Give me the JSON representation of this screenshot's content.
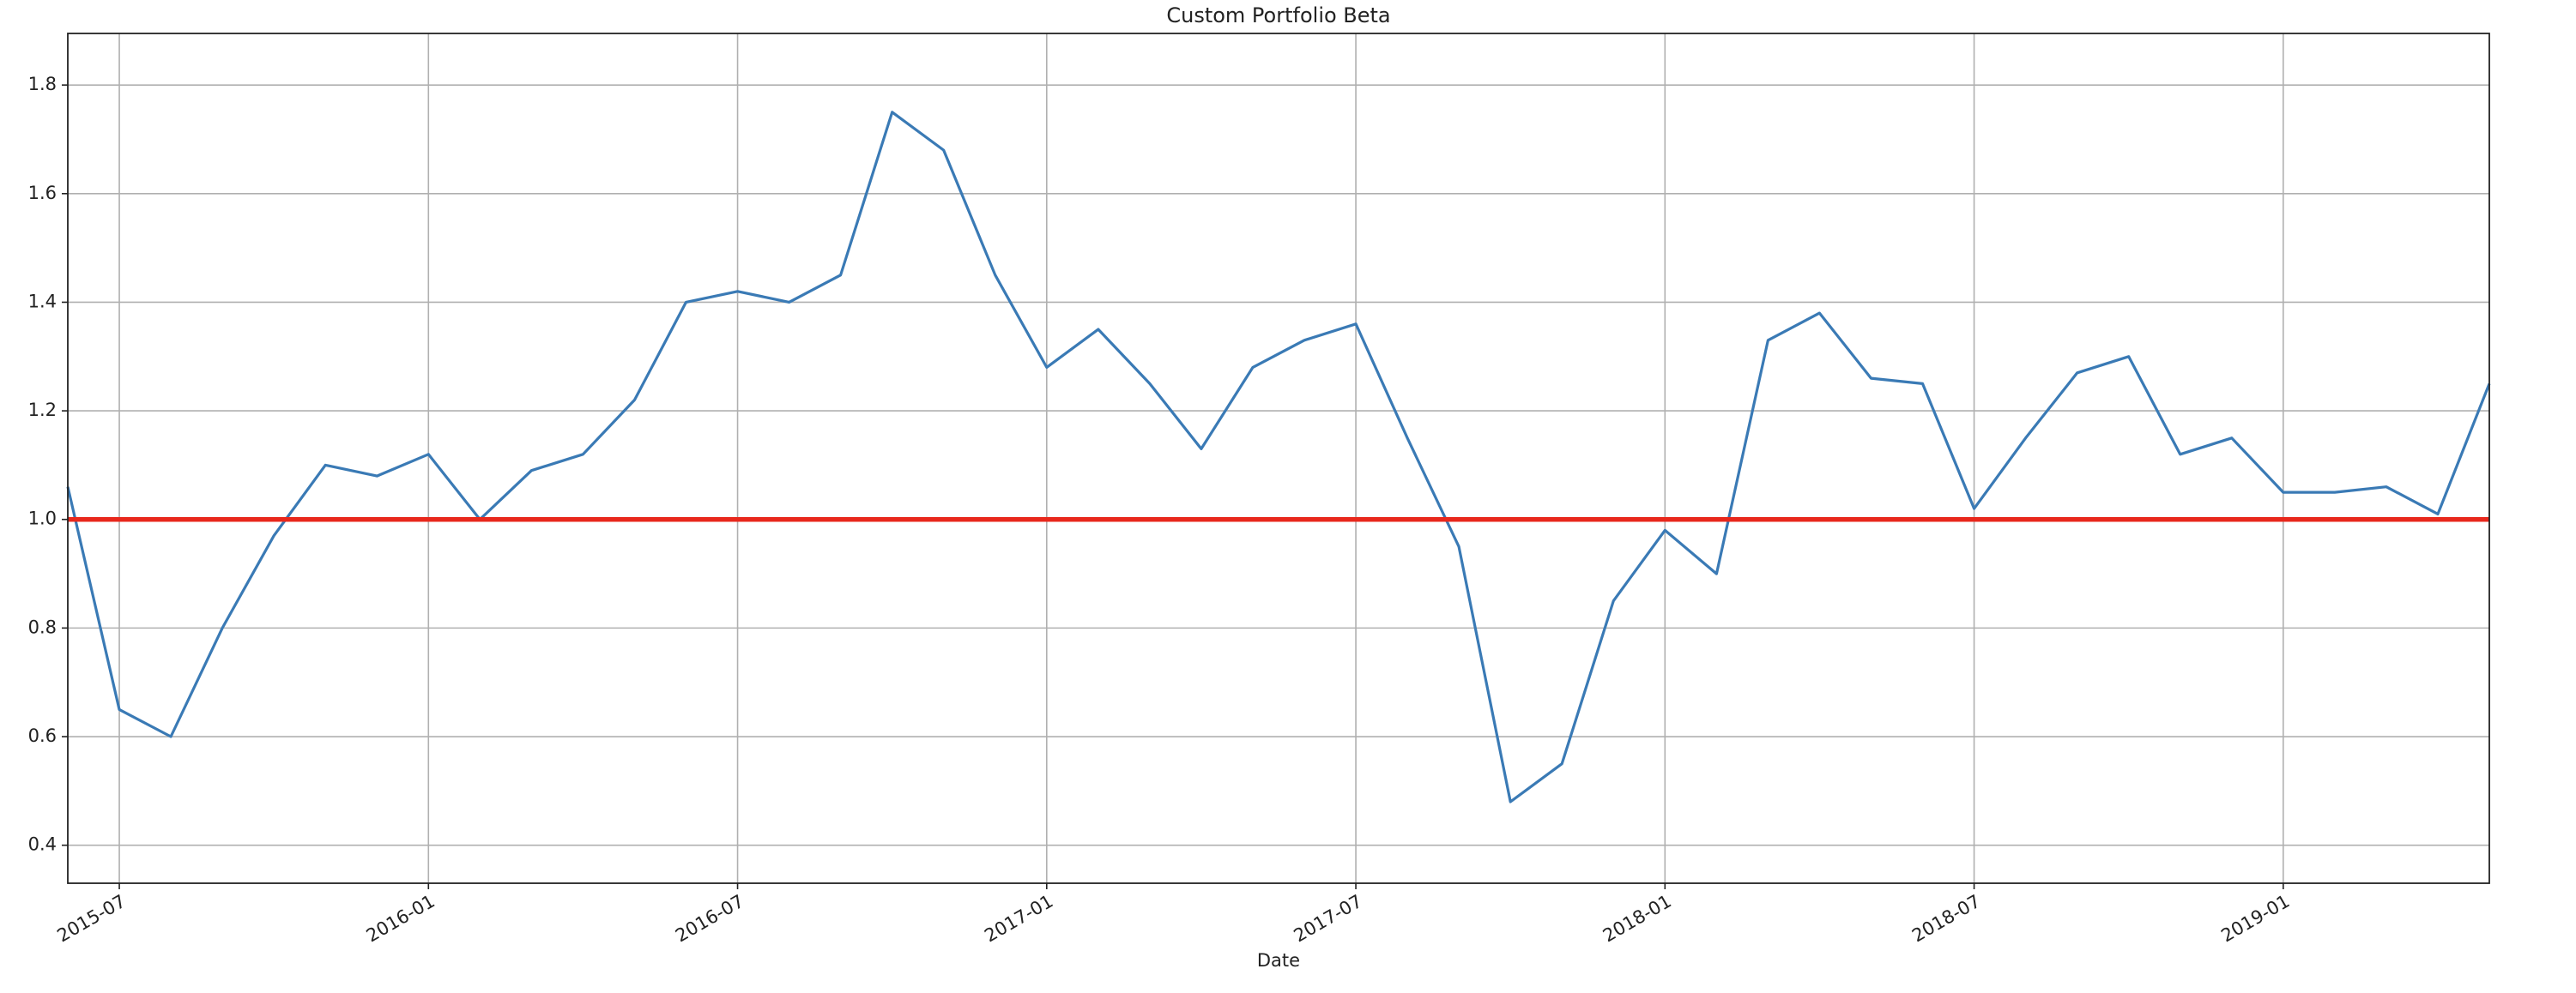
{
  "chart_data": {
    "type": "line",
    "title": "Custom Portfolio Beta",
    "x_label": "Date",
    "x": [
      "2015-06",
      "2015-07",
      "2015-08",
      "2015-09",
      "2015-10",
      "2015-11",
      "2015-12",
      "2016-01",
      "2016-02",
      "2016-03",
      "2016-04",
      "2016-05",
      "2016-06",
      "2016-07",
      "2016-08",
      "2016-09",
      "2016-10",
      "2016-11",
      "2016-12",
      "2017-01",
      "2017-02",
      "2017-03",
      "2017-04",
      "2017-05",
      "2017-06",
      "2017-07",
      "2017-08",
      "2017-09",
      "2017-10",
      "2017-11",
      "2017-12",
      "2018-01",
      "2018-02",
      "2018-03",
      "2018-04",
      "2018-05",
      "2018-06",
      "2018-07",
      "2018-08",
      "2018-09",
      "2018-10",
      "2018-11",
      "2018-12",
      "2019-01",
      "2019-02",
      "2019-03",
      "2019-04",
      "2019-05"
    ],
    "series": [
      {
        "color": "#3a7ab5",
        "values": [
          1.06,
          0.65,
          0.6,
          0.8,
          0.97,
          1.1,
          1.08,
          1.12,
          1.0,
          1.09,
          1.12,
          1.22,
          1.4,
          1.42,
          1.4,
          1.45,
          1.75,
          1.68,
          1.45,
          1.28,
          1.35,
          1.25,
          1.13,
          1.28,
          1.33,
          1.36,
          1.15,
          0.95,
          0.48,
          0.55,
          0.85,
          0.98,
          0.9,
          1.33,
          1.38,
          1.26,
          1.25,
          1.02,
          1.15,
          1.27,
          1.3,
          1.12,
          1.15,
          1.05,
          1.05,
          1.06,
          1.01,
          1.25
        ]
      }
    ],
    "reference_line": {
      "value": 1,
      "color": "#e8281c"
    },
    "xlim": [
      "2015-06",
      "2019-05"
    ],
    "xticks": [
      "2015-07",
      "2016-01",
      "2016-07",
      "2017-01",
      "2017-07",
      "2018-01",
      "2018-07",
      "2019-01"
    ],
    "ylim": [
      0.33,
      1.895
    ],
    "yticks": [
      0.4,
      0.6,
      0.8,
      {
        "value": 1,
        "label": "1.0"
      },
      1.2,
      1.4,
      1.6,
      1.8
    ],
    "grid": true
  }
}
